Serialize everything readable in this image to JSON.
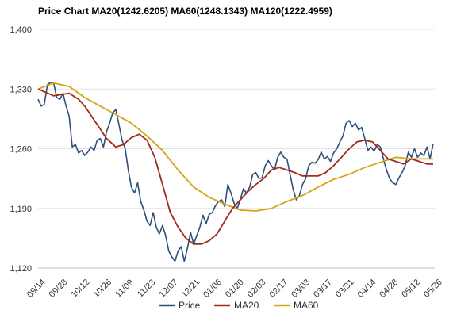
{
  "chart_data": {
    "type": "line",
    "title": "Price Chart MA20(1242.6205) MA60(1248.1343) MA120(1222.4959)",
    "xlabel": "",
    "ylabel": "",
    "ylim": [
      1120,
      1400
    ],
    "yticks": [
      1120,
      1190,
      1260,
      1330,
      1400
    ],
    "ytick_labels": [
      "1,120",
      "1,190",
      "1,260",
      "1,330",
      "1,400"
    ],
    "xticks": [
      "09/14",
      "09/28",
      "10/12",
      "10/26",
      "11/09",
      "11/23",
      "12/07",
      "12/21",
      "01/06",
      "01/20",
      "02/03",
      "02/17",
      "03/03",
      "03/17",
      "03/31",
      "04/14",
      "04/28",
      "05/12",
      "05/26"
    ],
    "xrange": [
      0,
      255
    ],
    "grid": "horizontal",
    "legend_position": "bottom",
    "colors": {
      "Price": "#2e4f7a",
      "MA20": "#a02b1a",
      "MA60": "#d4a318"
    },
    "series": [
      {
        "name": "Price",
        "x": [
          0,
          2,
          4,
          6,
          8,
          10,
          12,
          14,
          16,
          18,
          20,
          22,
          24,
          26,
          28,
          30,
          32,
          34,
          36,
          38,
          40,
          42,
          44,
          46,
          48,
          50,
          52,
          54,
          56,
          58,
          60,
          62,
          64,
          66,
          68,
          70,
          72,
          74,
          76,
          78,
          80,
          82,
          84,
          86,
          88,
          90,
          92,
          94,
          96,
          98,
          100,
          102,
          104,
          106,
          108,
          110,
          112,
          114,
          116,
          118,
          120,
          122,
          124,
          126,
          128,
          130,
          132,
          134,
          136,
          138,
          140,
          142,
          144,
          146,
          148,
          150,
          152,
          154,
          156,
          158,
          160,
          162,
          164,
          166,
          168,
          170,
          172,
          174,
          176,
          178,
          180,
          182,
          184,
          186,
          188,
          190,
          192,
          194,
          196,
          198,
          200,
          202,
          204,
          206,
          208,
          210,
          212,
          214,
          216,
          218,
          220,
          222,
          224,
          226,
          228,
          230,
          232,
          234,
          236,
          238,
          240,
          242,
          244,
          246,
          248,
          250,
          252,
          254
        ],
        "values": [
          1318,
          1310,
          1312,
          1335,
          1338,
          1337,
          1320,
          1318,
          1325,
          1310,
          1298,
          1262,
          1265,
          1255,
          1258,
          1252,
          1256,
          1262,
          1258,
          1270,
          1272,
          1262,
          1280,
          1290,
          1302,
          1306,
          1288,
          1270,
          1260,
          1235,
          1215,
          1208,
          1220,
          1198,
          1188,
          1175,
          1170,
          1185,
          1168,
          1160,
          1170,
          1158,
          1140,
          1133,
          1128,
          1140,
          1145,
          1128,
          1143,
          1162,
          1148,
          1158,
          1168,
          1182,
          1172,
          1183,
          1185,
          1193,
          1198,
          1200,
          1192,
          1218,
          1208,
          1196,
          1190,
          1200,
          1213,
          1208,
          1215,
          1230,
          1232,
          1225,
          1226,
          1240,
          1246,
          1240,
          1235,
          1250,
          1256,
          1250,
          1248,
          1230,
          1212,
          1200,
          1205,
          1218,
          1225,
          1240,
          1244,
          1243,
          1247,
          1256,
          1248,
          1251,
          1245,
          1255,
          1260,
          1268,
          1275,
          1290,
          1293,
          1286,
          1290,
          1282,
          1285,
          1272,
          1258,
          1262,
          1257,
          1265,
          1262,
          1248,
          1235,
          1225,
          1220,
          1218,
          1226,
          1232,
          1240,
          1256,
          1250,
          1260,
          1250,
          1255,
          1252,
          1262,
          1248,
          1266
        ]
      },
      {
        "name": "MA20",
        "x": [
          0,
          10,
          20,
          26,
          30,
          40,
          44,
          50,
          55,
          60,
          65,
          70,
          75,
          80,
          85,
          90,
          95,
          100,
          105,
          110,
          115,
          120,
          125,
          130,
          135,
          140,
          145,
          150,
          155,
          160,
          165,
          170,
          175,
          180,
          185,
          190,
          195,
          200,
          205,
          210,
          215,
          220,
          225,
          230,
          235,
          240,
          245,
          250,
          254
        ],
        "values": [
          1330,
          1322,
          1325,
          1318,
          1310,
          1283,
          1272,
          1262,
          1265,
          1273,
          1277,
          1270,
          1250,
          1218,
          1185,
          1168,
          1155,
          1148,
          1148,
          1152,
          1160,
          1175,
          1190,
          1200,
          1210,
          1218,
          1225,
          1235,
          1238,
          1235,
          1232,
          1228,
          1228,
          1228,
          1232,
          1240,
          1250,
          1260,
          1268,
          1270,
          1268,
          1258,
          1248,
          1245,
          1242,
          1248,
          1245,
          1242,
          1242
        ]
      },
      {
        "name": "MA60",
        "x": [
          0,
          10,
          20,
          30,
          40,
          50,
          60,
          70,
          80,
          90,
          100,
          110,
          120,
          130,
          140,
          150,
          160,
          170,
          180,
          190,
          200,
          210,
          220,
          230,
          240,
          250,
          254
        ],
        "values": [
          1330,
          1337,
          1333,
          1320,
          1310,
          1300,
          1290,
          1275,
          1258,
          1235,
          1215,
          1203,
          1195,
          1188,
          1187,
          1190,
          1198,
          1205,
          1215,
          1224,
          1230,
          1238,
          1244,
          1250,
          1248,
          1248,
          1248
        ]
      }
    ]
  }
}
